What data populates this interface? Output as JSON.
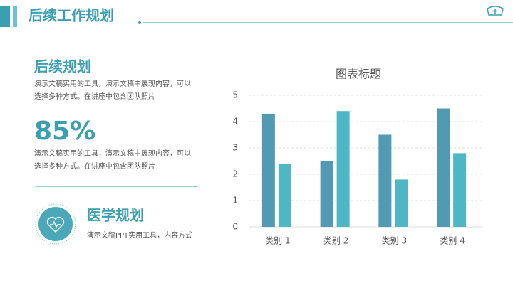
{
  "header": {
    "title": "后续工作规划"
  },
  "section1": {
    "title": "后续规划",
    "lines": [
      "演示文稿实用的工具，演示文稿中展现内容，可以",
      "选择多种方式。在讲座中包含团队照片"
    ]
  },
  "stat": {
    "value": "85%",
    "lines": [
      "演示文稿实用的工具，演示文稿中展现内容，可以",
      "选择多种方式。在讲座中包含团队照片"
    ]
  },
  "section2": {
    "title": "医学规划",
    "text": "演示文稿PPT实用工具，内容方式"
  },
  "chart_data": {
    "type": "bar",
    "title": "图表标题",
    "categories": [
      "类别 1",
      "类别 2",
      "类别 3",
      "类别 4"
    ],
    "series": [
      {
        "color": "#5299b3",
        "values": [
          4.3,
          2.5,
          3.5,
          4.5
        ]
      },
      {
        "color": "#4fb7c3",
        "values": [
          2.4,
          4.4,
          1.8,
          2.8
        ]
      }
    ],
    "ylim": [
      0,
      5
    ],
    "yticks": [
      0,
      1,
      2,
      3,
      4,
      5
    ],
    "grid": true
  }
}
